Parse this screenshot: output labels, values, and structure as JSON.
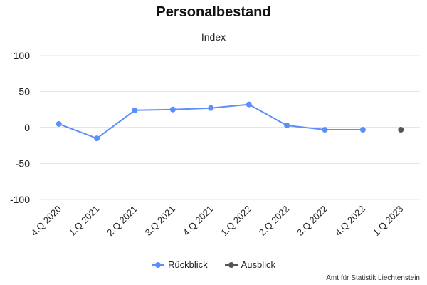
{
  "chart_data": {
    "type": "line",
    "title": "Personalbestand",
    "subtitle": "Index",
    "categories": [
      "4.Q 2020",
      "1.Q 2021",
      "2.Q 2021",
      "3.Q 2021",
      "4.Q 2021",
      "1.Q 2022",
      "2.Q 2022",
      "3.Q 2022",
      "4.Q 2022",
      "1.Q 2023"
    ],
    "ylim": [
      -100,
      100
    ],
    "yticks": [
      100,
      50,
      0,
      -50,
      -100
    ],
    "ytick_labels": [
      "100",
      "50",
      "0",
      "-50",
      "-100"
    ],
    "grid": true,
    "legend_position": "bottom-center",
    "series": [
      {
        "name": "Rückblick",
        "color": "#5b8ff9",
        "values": [
          5,
          -15,
          24,
          25,
          27,
          32,
          3,
          -3,
          -3,
          null
        ]
      },
      {
        "name": "Ausblick",
        "color": "#555555",
        "values": [
          null,
          null,
          null,
          null,
          null,
          null,
          null,
          null,
          null,
          -3
        ]
      }
    ],
    "credits": "Amt für Statistik Liechtenstein"
  }
}
